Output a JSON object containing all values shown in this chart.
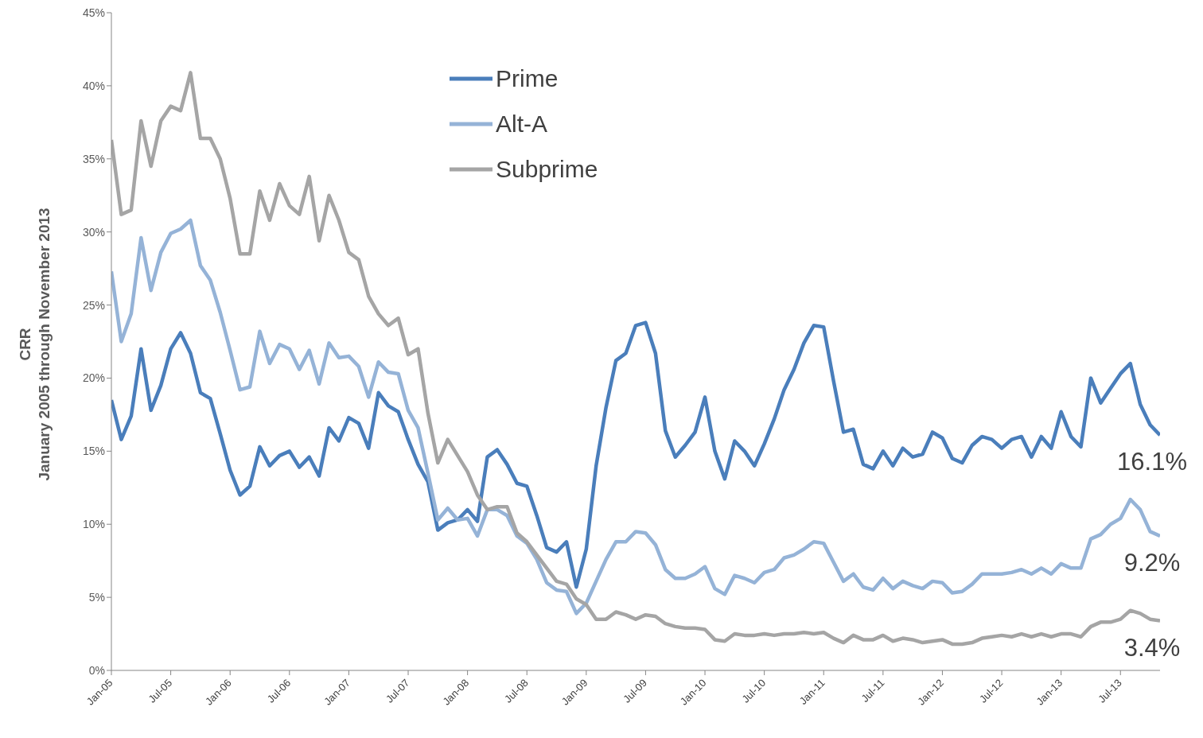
{
  "chart_data": {
    "type": "line",
    "ylabel": "CRR\nJanuary 2005 through November 2013",
    "x": [
      "2005-01",
      "2005-02",
      "2005-03",
      "2005-04",
      "2005-05",
      "2005-06",
      "2005-07",
      "2005-08",
      "2005-09",
      "2005-10",
      "2005-11",
      "2005-12",
      "2006-01",
      "2006-02",
      "2006-03",
      "2006-04",
      "2006-05",
      "2006-06",
      "2006-07",
      "2006-08",
      "2006-09",
      "2006-10",
      "2006-11",
      "2006-12",
      "2007-01",
      "2007-02",
      "2007-03",
      "2007-04",
      "2007-05",
      "2007-06",
      "2007-07",
      "2007-08",
      "2007-09",
      "2007-10",
      "2007-11",
      "2007-12",
      "2008-01",
      "2008-02",
      "2008-03",
      "2008-04",
      "2008-05",
      "2008-06",
      "2008-07",
      "2008-08",
      "2008-09",
      "2008-10",
      "2008-11",
      "2008-12",
      "2009-01",
      "2009-02",
      "2009-03",
      "2009-04",
      "2009-05",
      "2009-06",
      "2009-07",
      "2009-08",
      "2009-09",
      "2009-10",
      "2009-11",
      "2009-12",
      "2010-01",
      "2010-02",
      "2010-03",
      "2010-04",
      "2010-05",
      "2010-06",
      "2010-07",
      "2010-08",
      "2010-09",
      "2010-10",
      "2010-11",
      "2010-12",
      "2011-01",
      "2011-02",
      "2011-03",
      "2011-04",
      "2011-05",
      "2011-06",
      "2011-07",
      "2011-08",
      "2011-09",
      "2011-10",
      "2011-11",
      "2011-12",
      "2012-01",
      "2012-02",
      "2012-03",
      "2012-04",
      "2012-05",
      "2012-06",
      "2012-07",
      "2012-08",
      "2012-09",
      "2012-10",
      "2012-11",
      "2012-12",
      "2013-01",
      "2013-02",
      "2013-03",
      "2013-04",
      "2013-05",
      "2013-06",
      "2013-07",
      "2013-08",
      "2013-09",
      "2013-10",
      "2013-11"
    ],
    "series": [
      {
        "name": "Prime",
        "color": "#4a7ebb",
        "values": [
          18.5,
          15.8,
          17.4,
          22.0,
          17.8,
          19.5,
          22.0,
          23.1,
          21.7,
          19.0,
          18.6,
          16.2,
          13.7,
          12.0,
          12.6,
          15.3,
          14.0,
          14.7,
          15.0,
          13.9,
          14.6,
          13.3,
          16.6,
          15.7,
          17.3,
          16.9,
          15.2,
          19.0,
          18.1,
          17.7,
          15.8,
          14.1,
          12.9,
          9.6,
          10.1,
          10.3,
          11.0,
          10.2,
          14.6,
          15.1,
          14.1,
          12.8,
          12.6,
          10.6,
          8.4,
          8.1,
          8.8,
          5.7,
          8.3,
          14.0,
          18.0,
          21.2,
          21.7,
          23.6,
          23.8,
          21.7,
          16.4,
          14.6,
          15.4,
          16.3,
          18.7,
          15.0,
          13.1,
          15.7,
          15.0,
          14.0,
          15.5,
          17.2,
          19.2,
          20.6,
          22.4,
          23.6,
          23.5,
          19.8,
          16.3,
          16.5,
          14.1,
          13.8,
          15.0,
          14.0,
          15.2,
          14.6,
          14.8,
          16.3,
          15.9,
          14.5,
          14.2,
          15.4,
          16.0,
          15.8,
          15.2,
          15.8,
          16.0,
          14.6,
          16.0,
          15.2,
          17.7,
          16.0,
          15.3,
          20.0,
          18.3,
          19.3,
          20.3,
          21.0,
          18.2,
          16.8,
          16.1
        ]
      },
      {
        "name": "Alt-A",
        "color": "#95b3d7",
        "values": [
          27.3,
          22.5,
          24.4,
          29.6,
          26.0,
          28.6,
          29.9,
          30.2,
          30.8,
          27.7,
          26.7,
          24.5,
          21.9,
          19.2,
          19.4,
          23.2,
          21.0,
          22.3,
          22.0,
          20.6,
          21.9,
          19.6,
          22.4,
          21.4,
          21.5,
          20.8,
          18.7,
          21.1,
          20.4,
          20.3,
          17.8,
          16.6,
          13.5,
          10.3,
          11.1,
          10.3,
          10.4,
          9.2,
          11.0,
          11.0,
          10.6,
          9.2,
          8.7,
          7.6,
          6.0,
          5.5,
          5.4,
          3.9,
          4.6,
          6.1,
          7.6,
          8.8,
          8.8,
          9.5,
          9.4,
          8.6,
          6.9,
          6.3,
          6.3,
          6.6,
          7.1,
          5.6,
          5.2,
          6.5,
          6.3,
          6.0,
          6.7,
          6.9,
          7.7,
          7.9,
          8.3,
          8.8,
          8.7,
          7.4,
          6.1,
          6.6,
          5.7,
          5.5,
          6.3,
          5.6,
          6.1,
          5.8,
          5.6,
          6.1,
          6.0,
          5.3,
          5.4,
          5.9,
          6.6,
          6.6,
          6.6,
          6.7,
          6.9,
          6.6,
          7.0,
          6.6,
          7.3,
          7.0,
          7.0,
          9.0,
          9.3,
          10.0,
          10.4,
          11.7,
          11.0,
          9.5,
          9.2
        ]
      },
      {
        "name": "Subprime",
        "color": "#a5a5a5",
        "values": [
          36.3,
          31.2,
          31.5,
          37.6,
          34.5,
          37.6,
          38.6,
          38.3,
          40.9,
          36.4,
          36.4,
          35.0,
          32.3,
          28.5,
          28.5,
          32.8,
          30.8,
          33.3,
          31.8,
          31.2,
          33.8,
          29.4,
          32.5,
          30.8,
          28.6,
          28.1,
          25.6,
          24.4,
          23.6,
          24.1,
          21.6,
          22.0,
          17.6,
          14.2,
          15.8,
          14.7,
          13.6,
          12.0,
          11.0,
          11.2,
          11.2,
          9.4,
          8.8,
          7.9,
          7.0,
          6.1,
          5.9,
          4.9,
          4.5,
          3.5,
          3.5,
          4.0,
          3.8,
          3.5,
          3.8,
          3.7,
          3.2,
          3.0,
          2.9,
          2.9,
          2.8,
          2.1,
          2.0,
          2.5,
          2.4,
          2.4,
          2.5,
          2.4,
          2.5,
          2.5,
          2.6,
          2.5,
          2.6,
          2.2,
          1.9,
          2.4,
          2.1,
          2.1,
          2.4,
          2.0,
          2.2,
          2.1,
          1.9,
          2.0,
          2.1,
          1.8,
          1.8,
          1.9,
          2.2,
          2.3,
          2.4,
          2.3,
          2.5,
          2.3,
          2.5,
          2.3,
          2.5,
          2.5,
          2.3,
          3.0,
          3.3,
          3.3,
          3.5,
          4.1,
          3.9,
          3.5,
          3.4
        ]
      }
    ],
    "xlim": [
      "2005-01",
      "2013-11"
    ],
    "xticks": [
      {
        "value": "2005-01",
        "label": "Jan-05"
      },
      {
        "value": "2005-07",
        "label": "Jul-05"
      },
      {
        "value": "2006-01",
        "label": "Jan-06"
      },
      {
        "value": "2006-07",
        "label": "Jul-06"
      },
      {
        "value": "2007-01",
        "label": "Jan-07"
      },
      {
        "value": "2007-07",
        "label": "Jul-07"
      },
      {
        "value": "2008-01",
        "label": "Jan-08"
      },
      {
        "value": "2008-07",
        "label": "Jul-08"
      },
      {
        "value": "2009-01",
        "label": "Jan-09"
      },
      {
        "value": "2009-07",
        "label": "Jul-09"
      },
      {
        "value": "2010-01",
        "label": "Jan-10"
      },
      {
        "value": "2010-07",
        "label": "Jul-10"
      },
      {
        "value": "2011-01",
        "label": "Jan-11"
      },
      {
        "value": "2011-07",
        "label": "Jul-11"
      },
      {
        "value": "2012-01",
        "label": "Jan-12"
      },
      {
        "value": "2012-07",
        "label": "Jul-12"
      },
      {
        "value": "2013-01",
        "label": "Jan-13"
      },
      {
        "value": "2013-07",
        "label": "Jul-13"
      }
    ],
    "ylim": [
      0,
      45
    ],
    "yticks": [
      {
        "value": 0,
        "label": "0%"
      },
      {
        "value": 5,
        "label": "5%"
      },
      {
        "value": 10,
        "label": "10%"
      },
      {
        "value": 15,
        "label": "15%"
      },
      {
        "value": 20,
        "label": "20%"
      },
      {
        "value": 25,
        "label": "25%"
      },
      {
        "value": 30,
        "label": "30%"
      },
      {
        "value": 35,
        "label": "35%"
      },
      {
        "value": 40,
        "label": "40%"
      },
      {
        "value": 45,
        "label": "45%"
      }
    ],
    "annotations": [
      {
        "text": "16.1%",
        "x": "2013-11",
        "y": 16.1
      },
      {
        "text": "9.2%",
        "x": "2013-11",
        "y": 9.2
      },
      {
        "text": "3.4%",
        "x": "2013-11",
        "y": 3.4
      }
    ],
    "grid": false,
    "legend": "top left"
  }
}
